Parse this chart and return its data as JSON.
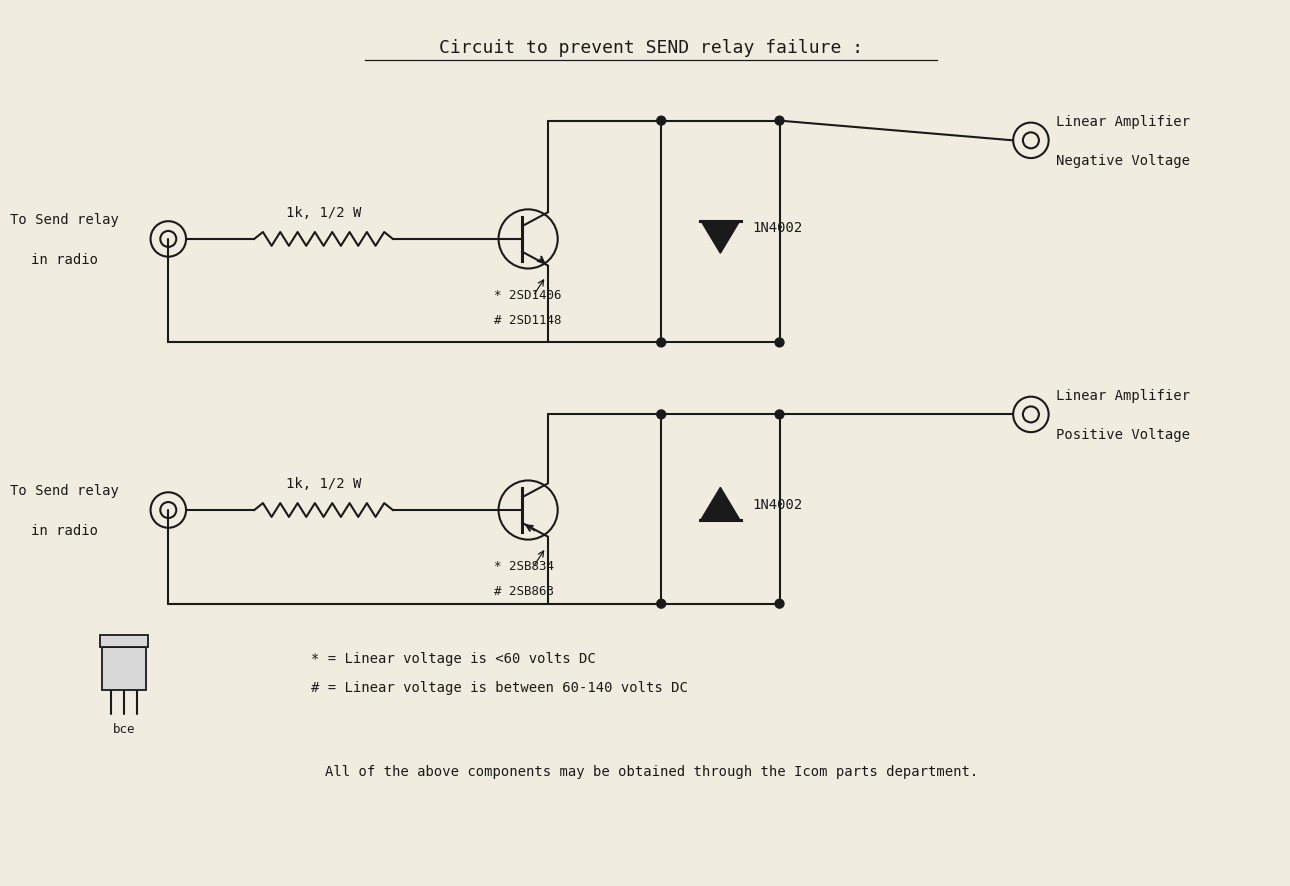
{
  "title": "Circuit to prevent SEND relay failure :",
  "bg_color": "#f0ede0",
  "line_color": "#1a1a1a",
  "text_color": "#1a1a1a",
  "title_fontsize": 13,
  "label_fontsize": 10,
  "small_fontsize": 9,
  "bottom_text": "All of the above components may be obtained through the Icom parts department.",
  "legend_line1": "* = Linear voltage is <60 volts DC",
  "legend_line2": "# = Linear voltage is between 60-140 volts DC"
}
